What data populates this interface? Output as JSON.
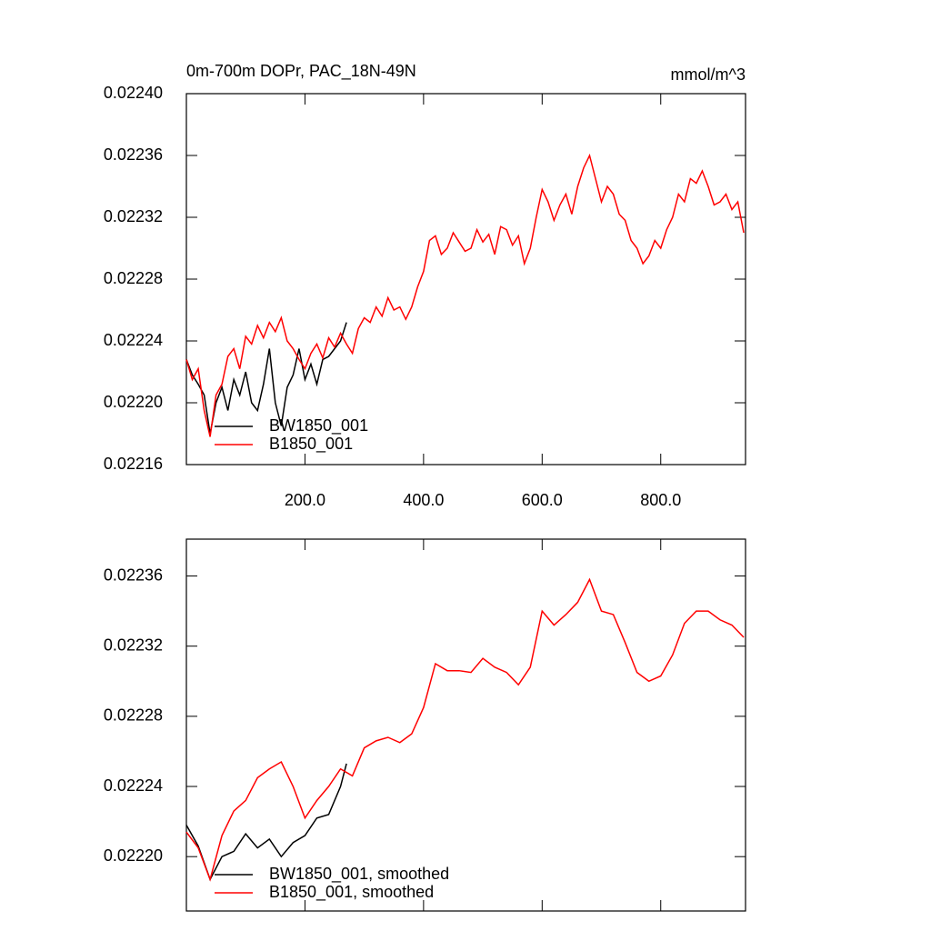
{
  "chart_data": [
    {
      "type": "line",
      "title": "0m-700m DOPr, PAC_18N-49N",
      "units": "mmol/m^3",
      "xlim": [
        0,
        943
      ],
      "ylim": [
        0.02216,
        0.0224
      ],
      "xticks": [
        {
          "value": 200,
          "label": "200.0"
        },
        {
          "value": 400,
          "label": "400.0"
        },
        {
          "value": 600,
          "label": "600.0"
        },
        {
          "value": 800,
          "label": "800.0"
        }
      ],
      "yticks": [
        0.02216,
        {
          "value": 0.0222,
          "label": "0.02220"
        },
        0.02224,
        0.02228,
        0.02232,
        0.02236,
        {
          "value": 0.0224,
          "label": "0.02240"
        }
      ],
      "show_xtick_labels": true,
      "series": [
        {
          "name": "BW1850_001",
          "color": "#000000",
          "x": [
            0,
            10,
            20,
            30,
            40,
            50,
            60,
            70,
            80,
            90,
            100,
            110,
            120,
            130,
            140,
            150,
            160,
            170,
            180,
            190,
            200,
            210,
            220,
            230,
            240,
            250,
            260,
            270
          ],
          "values": [
            0.022228,
            0.022218,
            0.022212,
            0.022205,
            0.02218,
            0.0222,
            0.02221,
            0.022195,
            0.022215,
            0.022205,
            0.02222,
            0.0222,
            0.022195,
            0.022212,
            0.022235,
            0.0222,
            0.022185,
            0.02221,
            0.022218,
            0.022235,
            0.022215,
            0.022225,
            0.022212,
            0.022228,
            0.02223,
            0.022235,
            0.02224,
            0.022252
          ]
        },
        {
          "name": "B1850_001",
          "color": "#ff0000",
          "x": [
            0,
            10,
            20,
            30,
            40,
            50,
            60,
            70,
            80,
            90,
            100,
            110,
            120,
            130,
            140,
            150,
            160,
            170,
            180,
            190,
            200,
            210,
            220,
            230,
            240,
            250,
            260,
            270,
            280,
            290,
            300,
            310,
            320,
            330,
            340,
            350,
            360,
            370,
            380,
            390,
            400,
            410,
            420,
            430,
            440,
            450,
            460,
            470,
            480,
            490,
            500,
            510,
            520,
            530,
            540,
            550,
            560,
            570,
            580,
            590,
            600,
            610,
            620,
            630,
            640,
            650,
            660,
            670,
            680,
            690,
            700,
            710,
            720,
            730,
            740,
            750,
            760,
            770,
            780,
            790,
            800,
            810,
            820,
            830,
            840,
            850,
            860,
            870,
            880,
            890,
            900,
            910,
            920,
            930,
            940
          ],
          "values": [
            0.022228,
            0.022215,
            0.022222,
            0.022195,
            0.022178,
            0.022205,
            0.022212,
            0.02223,
            0.022235,
            0.022222,
            0.022243,
            0.022238,
            0.02225,
            0.022242,
            0.022252,
            0.022246,
            0.022255,
            0.02224,
            0.022235,
            0.022228,
            0.022222,
            0.022232,
            0.022238,
            0.022229,
            0.022242,
            0.022236,
            0.022245,
            0.022238,
            0.022232,
            0.022248,
            0.022255,
            0.022252,
            0.022262,
            0.022256,
            0.022268,
            0.02226,
            0.022262,
            0.022254,
            0.022262,
            0.022275,
            0.022285,
            0.022305,
            0.022308,
            0.022296,
            0.0223,
            0.02231,
            0.022304,
            0.022298,
            0.0223,
            0.022312,
            0.022304,
            0.022309,
            0.022296,
            0.022314,
            0.022312,
            0.022302,
            0.022308,
            0.02229,
            0.0223,
            0.02232,
            0.022338,
            0.02233,
            0.022318,
            0.022328,
            0.022335,
            0.022322,
            0.02234,
            0.022352,
            0.02236,
            0.022345,
            0.02233,
            0.02234,
            0.022335,
            0.022322,
            0.022318,
            0.022305,
            0.0223,
            0.02229,
            0.022295,
            0.022305,
            0.0223,
            0.022312,
            0.02232,
            0.022335,
            0.02233,
            0.022345,
            0.022342,
            0.02235,
            0.02234,
            0.022328,
            0.02233,
            0.022335,
            0.022325,
            0.02233,
            0.02231
          ]
        }
      ]
    },
    {
      "type": "line",
      "xlim": [
        0,
        943
      ],
      "ylim": [
        0.022169,
        0.022381
      ],
      "xticks": [
        200,
        400,
        600,
        800
      ],
      "yticks": [
        {
          "value": 0.0222,
          "label": "0.02220"
        },
        0.02224,
        0.02228,
        0.02232,
        0.02236
      ],
      "show_xtick_labels": false,
      "series": [
        {
          "name": "BW1850_001, smoothed",
          "color": "#000000",
          "x": [
            0,
            20,
            40,
            60,
            80,
            100,
            120,
            140,
            160,
            180,
            200,
            220,
            240,
            260,
            270
          ],
          "values": [
            0.022218,
            0.022206,
            0.022187,
            0.0222,
            0.022203,
            0.022213,
            0.022205,
            0.02221,
            0.0222,
            0.022208,
            0.022212,
            0.022222,
            0.022224,
            0.02224,
            0.022253
          ]
        },
        {
          "name": "B1850_001, smoothed",
          "color": "#ff0000",
          "x": [
            0,
            20,
            40,
            60,
            80,
            100,
            120,
            140,
            160,
            180,
            200,
            220,
            240,
            260,
            280,
            300,
            320,
            340,
            360,
            380,
            400,
            420,
            440,
            460,
            480,
            500,
            520,
            540,
            560,
            580,
            600,
            620,
            640,
            660,
            680,
            700,
            720,
            740,
            760,
            780,
            800,
            820,
            840,
            860,
            880,
            900,
            920,
            940
          ],
          "values": [
            0.022214,
            0.022205,
            0.022187,
            0.022212,
            0.022226,
            0.022232,
            0.022245,
            0.02225,
            0.022254,
            0.02224,
            0.022222,
            0.022232,
            0.02224,
            0.02225,
            0.022246,
            0.022262,
            0.022266,
            0.022268,
            0.022265,
            0.02227,
            0.022285,
            0.02231,
            0.022306,
            0.022306,
            0.022305,
            0.022313,
            0.022308,
            0.022305,
            0.022298,
            0.022308,
            0.02234,
            0.022332,
            0.022338,
            0.022345,
            0.022358,
            0.02234,
            0.022338,
            0.022322,
            0.022305,
            0.0223,
            0.022303,
            0.022315,
            0.022333,
            0.02234,
            0.02234,
            0.022335,
            0.022332,
            0.022325
          ]
        }
      ]
    }
  ]
}
